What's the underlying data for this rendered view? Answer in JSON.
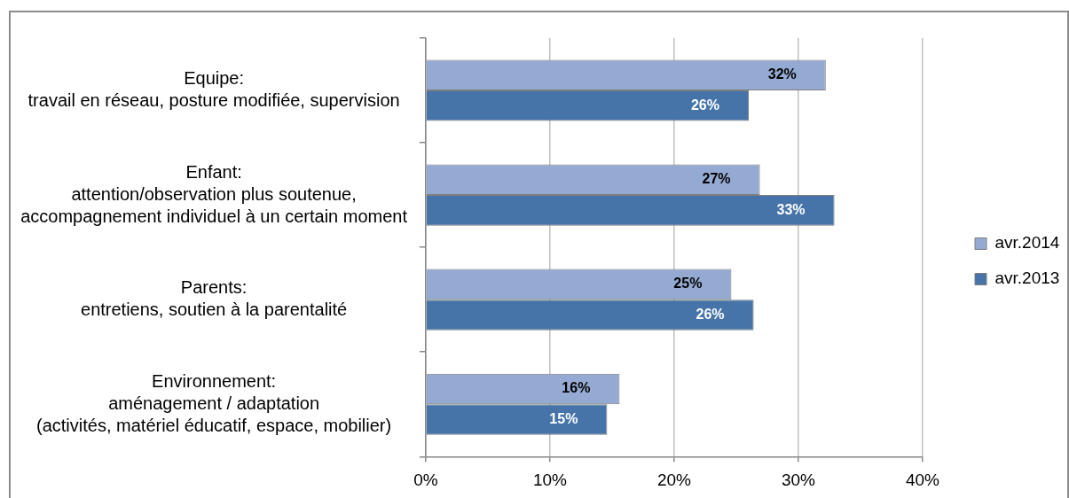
{
  "chart_data": {
    "type": "bar",
    "orientation": "horizontal",
    "categories": [
      "Equipe:\ntravail en réseau, posture modifiée, supervision",
      "Enfant:\nattention/observation plus soutenue,\naccompagnement individuel à un certain moment",
      "Parents:\nentretiens, soutien à la parentalité",
      "Environnement:\naménagement / adaptation\n(activités, matériel éducatif, espace, mobilier)"
    ],
    "series": [
      {
        "name": "avr.2014",
        "color": "#95aad2",
        "values": [
          32.2,
          26.9,
          24.6,
          15.6
        ],
        "value_labels": [
          "32%",
          "27%",
          "25%",
          "16%"
        ]
      },
      {
        "name": "avr.2013",
        "color": "#4674a8",
        "values": [
          26.0,
          32.9,
          26.4,
          14.6
        ],
        "value_labels": [
          "26%",
          "33%",
          "26%",
          "15%"
        ]
      }
    ],
    "xlim": [
      0,
      40
    ],
    "xticks": [
      {
        "value": 0,
        "label": "0%"
      },
      {
        "value": 10,
        "label": "10%"
      },
      {
        "value": 20,
        "label": "20%"
      },
      {
        "value": 30,
        "label": "30%"
      },
      {
        "value": 40,
        "label": "40%"
      }
    ],
    "grid": "x",
    "legend": "right"
  }
}
